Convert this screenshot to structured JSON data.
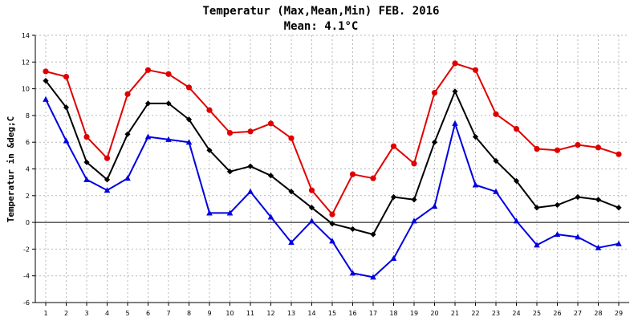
{
  "chart_data": {
    "type": "line",
    "title": "Temperatur (Max,Mean,Min) FEB. 2016",
    "subtitle": "Mean: 4.1°C",
    "xlabel": "",
    "ylabel": "Temperatur in &deg;C",
    "ylim": [
      -6,
      14
    ],
    "y_ticks": [
      -6,
      -4,
      -2,
      0,
      2,
      4,
      6,
      8,
      10,
      12,
      14
    ],
    "grid": true,
    "x": [
      1,
      2,
      3,
      4,
      5,
      6,
      7,
      8,
      9,
      10,
      11,
      12,
      13,
      14,
      15,
      16,
      17,
      18,
      19,
      20,
      21,
      22,
      23,
      24,
      25,
      26,
      27,
      28,
      29
    ],
    "series": [
      {
        "key": "max",
        "color": "#e00000",
        "marker": "circle",
        "values": [
          11.3,
          10.9,
          6.4,
          4.8,
          9.6,
          11.4,
          11.1,
          10.1,
          8.4,
          6.7,
          6.8,
          7.4,
          6.3,
          2.4,
          0.6,
          3.6,
          3.3,
          5.7,
          4.4,
          9.7,
          11.9,
          11.4,
          8.1,
          7.0,
          5.5,
          5.4,
          5.8,
          5.6,
          5.1
        ]
      },
      {
        "key": "mean",
        "color": "#000000",
        "marker": "diamond",
        "values": [
          10.6,
          8.6,
          4.5,
          3.2,
          6.6,
          8.9,
          8.9,
          7.7,
          5.4,
          3.8,
          4.2,
          3.5,
          2.3,
          1.1,
          -0.1,
          -0.5,
          -0.9,
          1.9,
          1.7,
          6.0,
          9.8,
          6.4,
          4.6,
          3.1,
          1.1,
          1.3,
          1.9,
          1.7,
          1.1
        ]
      },
      {
        "key": "min",
        "color": "#0000e0",
        "marker": "triangle",
        "values": [
          9.2,
          6.1,
          3.2,
          2.4,
          3.3,
          6.4,
          6.2,
          6.0,
          0.7,
          0.7,
          2.3,
          0.4,
          -1.5,
          0.1,
          -1.4,
          -3.8,
          -4.1,
          -2.7,
          0.1,
          1.2,
          7.4,
          2.8,
          2.3,
          0.1,
          -1.7,
          -0.9,
          -1.1,
          -1.9,
          -1.6
        ]
      }
    ]
  }
}
